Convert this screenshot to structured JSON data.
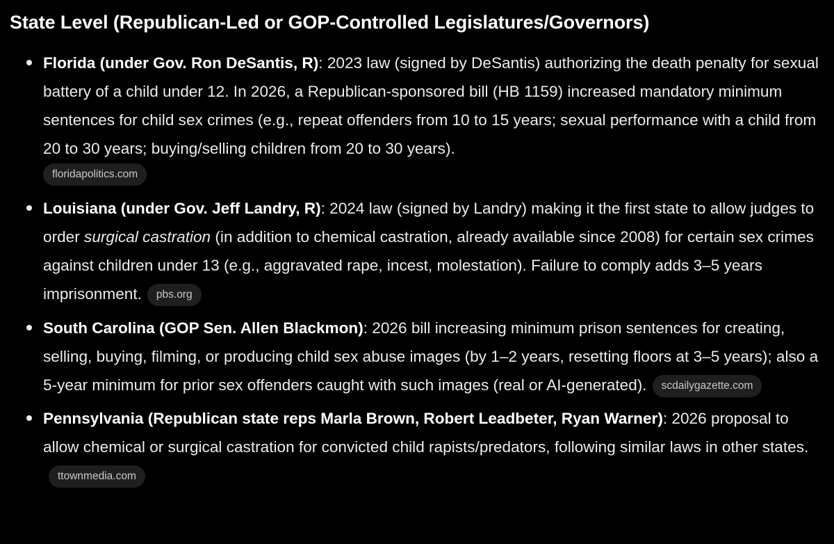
{
  "section": {
    "heading": "State Level (Republican-Led or GOP-Controlled Legislatures/Governors)"
  },
  "items": [
    {
      "lead": "Florida (under Gov. Ron DeSantis, R)",
      "text": ": 2023 law (signed by DeSantis) authorizing the death penalty for sexual battery of a child under 12. In 2026, a Republican-sponsored bill (HB 1159) increased mandatory minimum sentences for child sex crimes (e.g., repeat offenders from 10 to 15 years; sexual performance with a child from 20 to 30 years; buying/selling children from 20 to 30 years).",
      "source": "floridapolitics.com"
    },
    {
      "lead": "Louisiana (under Gov. Jeff Landry, R)",
      "text_before": ": 2024 law (signed by Landry) making it the first state to allow judges to order ",
      "emphasis": "surgical castration",
      "text_after": " (in addition to chemical castration, already available since 2008) for certain sex crimes against children under 13 (e.g., aggravated rape, incest, molestation). Failure to comply adds 3–5 years imprisonment.",
      "source": "pbs.org"
    },
    {
      "lead": "South Carolina (GOP Sen. Allen Blackmon)",
      "text": ": 2026 bill increasing minimum prison sentences for creating, selling, buying, filming, or producing child sex abuse images (by 1–2 years, resetting floors at 3–5 years); also a 5-year minimum for prior sex offenders caught with such images (real or AI-generated).",
      "source": "scdailygazette.com"
    },
    {
      "lead": "Pennsylvania (Republican state reps Marla Brown, Robert Leadbeter, Ryan Warner)",
      "text": ": 2026 proposal to allow chemical or surgical castration for convicted child rapists/predators, following similar laws in other states.",
      "source": "ttownmedia.com"
    }
  ],
  "colors": {
    "background": "#000000",
    "text": "#ececec",
    "chip_background": "#1f1f22",
    "chip_text": "#c9c9c9"
  }
}
